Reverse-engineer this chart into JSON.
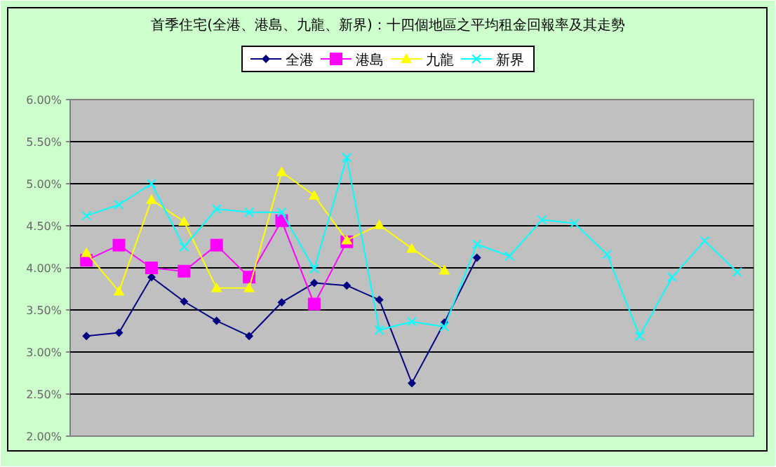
{
  "chart_data": {
    "type": "line",
    "title": "首季住宅(全港、港島、九龍、新界)：十四個地區之平均租金回報率及其走勢",
    "categories": [
      null,
      null,
      null,
      null,
      null,
      null,
      null,
      null,
      null,
      null,
      null,
      null,
      null,
      null,
      null,
      null,
      null,
      null,
      null,
      null,
      null
    ],
    "series": [
      {
        "name": "全港",
        "color": "#000080",
        "marker": "diamond",
        "values": [
          3.19,
          3.23,
          3.89,
          3.6,
          3.37,
          3.19,
          3.59,
          3.82,
          3.79,
          3.62,
          2.63,
          3.35,
          4.12,
          null,
          null,
          null,
          null,
          null,
          null,
          null,
          null
        ]
      },
      {
        "name": "港島",
        "color": "#ff00ff",
        "marker": "square",
        "values": [
          4.09,
          4.27,
          4.0,
          3.96,
          4.27,
          3.89,
          4.56,
          3.57,
          4.31,
          null,
          null,
          null,
          null,
          null,
          null,
          null,
          null,
          null,
          null,
          null,
          null
        ]
      },
      {
        "name": "九龍",
        "color": "#ffff00",
        "marker": "triangle",
        "values": [
          4.18,
          3.72,
          4.81,
          4.55,
          3.76,
          3.76,
          5.14,
          4.86,
          4.33,
          4.51,
          4.23,
          3.97,
          null,
          null,
          null,
          null,
          null,
          null,
          null,
          null,
          null
        ]
      },
      {
        "name": "新界",
        "color": "#00ffff",
        "marker": "cross",
        "values": [
          4.62,
          4.75,
          5.0,
          4.25,
          4.7,
          4.66,
          4.66,
          3.99,
          5.31,
          3.26,
          3.36,
          3.3,
          4.28,
          4.14,
          4.57,
          4.53,
          4.16,
          3.19,
          3.89,
          4.32,
          3.95
        ]
      }
    ],
    "ylim": [
      2,
      6
    ],
    "yticks": [
      {
        "value": 2,
        "label": "2.00%"
      },
      {
        "value": 2.5,
        "label": "2.50%"
      },
      {
        "value": 3,
        "label": "3.00%"
      },
      {
        "value": 3.5,
        "label": "3.50%"
      },
      {
        "value": 4,
        "label": "4.00%"
      },
      {
        "value": 4.5,
        "label": "4.50%"
      },
      {
        "value": 5,
        "label": "5.00%"
      },
      {
        "value": 5.5,
        "label": "5.50%"
      },
      {
        "value": 6,
        "label": "6.00%"
      }
    ],
    "grid": "y",
    "legend": "top"
  }
}
